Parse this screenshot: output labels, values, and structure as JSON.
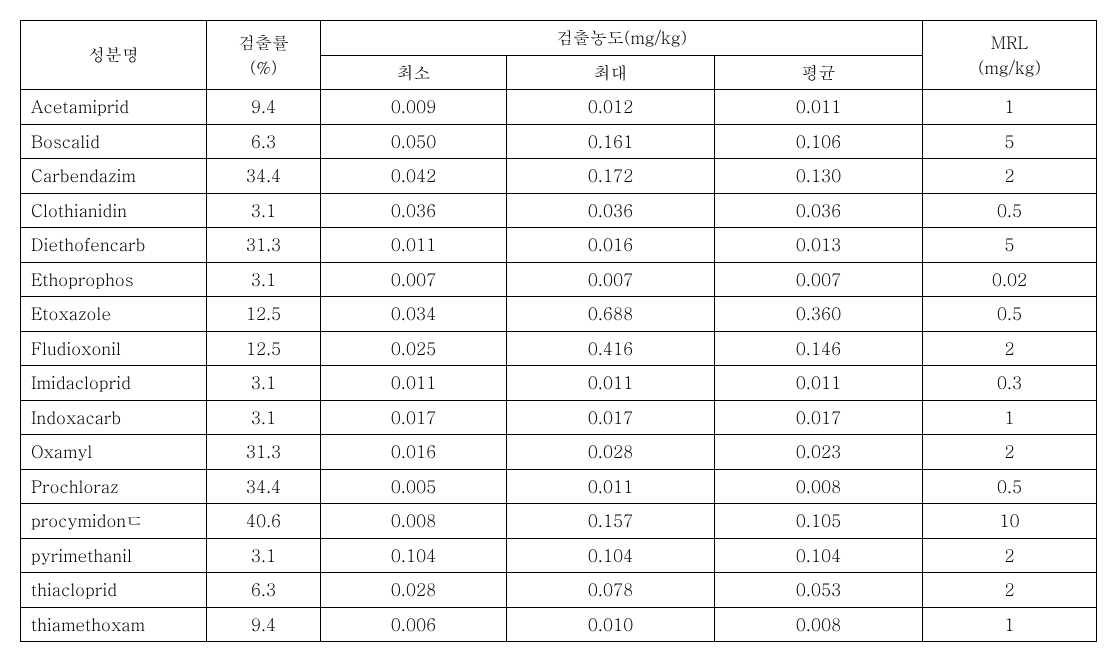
{
  "headers": {
    "component": "성분명",
    "detection_rate": "검출률\n(%)",
    "concentration": "검출농도(mg/kg)",
    "min": "최소",
    "max": "최대",
    "avg": "평균",
    "mrl": "MRL\n(mg/kg)"
  },
  "rows": [
    {
      "name": "Acetamiprid",
      "rate": "9.4",
      "min": "0.009",
      "max": "0.012",
      "avg": "0.011",
      "mrl": "1"
    },
    {
      "name": "Boscalid",
      "rate": "6.3",
      "min": "0.050",
      "max": "0.161",
      "avg": "0.106",
      "mrl": "5"
    },
    {
      "name": "Carbendazim",
      "rate": "34.4",
      "min": "0.042",
      "max": "0.172",
      "avg": "0.130",
      "mrl": "2"
    },
    {
      "name": "Clothianidin",
      "rate": "3.1",
      "min": "0.036",
      "max": "0.036",
      "avg": "0.036",
      "mrl": "0.5"
    },
    {
      "name": "Diethofencarb",
      "rate": "31.3",
      "min": "0.011",
      "max": "0.016",
      "avg": "0.013",
      "mrl": "5"
    },
    {
      "name": "Ethoprophos",
      "rate": "3.1",
      "min": "0.007",
      "max": "0.007",
      "avg": "0.007",
      "mrl": "0.02"
    },
    {
      "name": "Etoxazole",
      "rate": "12.5",
      "min": "0.034",
      "max": "0.688",
      "avg": "0.360",
      "mrl": "0.5"
    },
    {
      "name": "Fludioxonil",
      "rate": "12.5",
      "min": "0.025",
      "max": "0.416",
      "avg": "0.146",
      "mrl": "2"
    },
    {
      "name": "Imidacloprid",
      "rate": "3.1",
      "min": "0.011",
      "max": "0.011",
      "avg": "0.011",
      "mrl": "0.3"
    },
    {
      "name": "Indoxacarb",
      "rate": "3.1",
      "min": "0.017",
      "max": "0.017",
      "avg": "0.017",
      "mrl": "1"
    },
    {
      "name": "Oxamyl",
      "rate": "31.3",
      "min": "0.016",
      "max": "0.028",
      "avg": "0.023",
      "mrl": "2"
    },
    {
      "name": "Prochloraz",
      "rate": "34.4",
      "min": "0.005",
      "max": "0.011",
      "avg": "0.008",
      "mrl": "0.5"
    },
    {
      "name": "procymidonㄷ",
      "rate": "40.6",
      "min": "0.008",
      "max": "0.157",
      "avg": "0.105",
      "mrl": "10"
    },
    {
      "name": "pyrimethanil",
      "rate": "3.1",
      "min": "0.104",
      "max": "0.104",
      "avg": "0.104",
      "mrl": "2"
    },
    {
      "name": "thiacloprid",
      "rate": "6.3",
      "min": "0.028",
      "max": "0.078",
      "avg": "0.053",
      "mrl": "2"
    },
    {
      "name": "thiamethoxam",
      "rate": "9.4",
      "min": "0.006",
      "max": "0.010",
      "avg": "0.008",
      "mrl": "1"
    }
  ]
}
